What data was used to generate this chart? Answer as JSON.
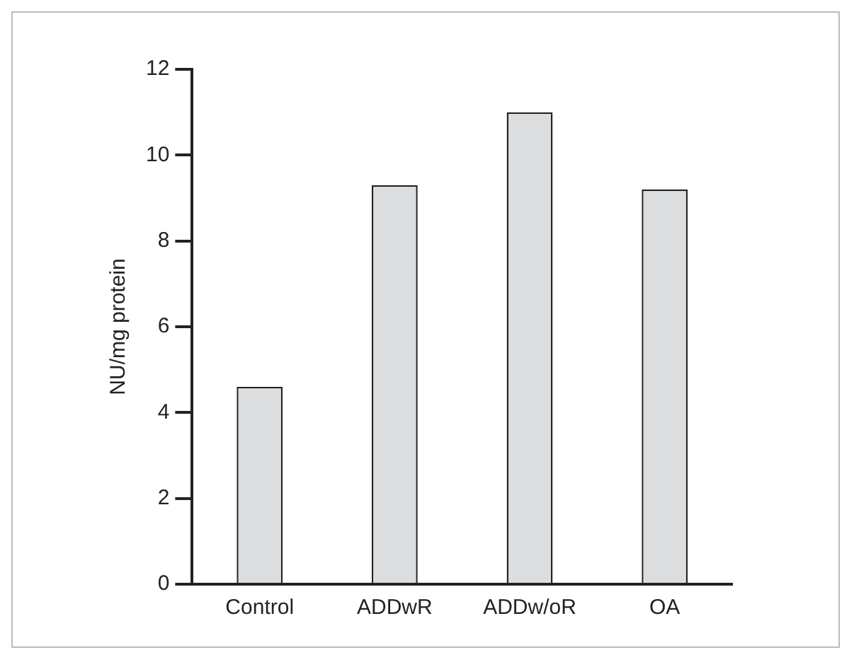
{
  "chart_data": {
    "type": "bar",
    "ylabel": "NU/mg protein",
    "categories": [
      "Control",
      "ADDwR",
      "ADDw/oR",
      "OA"
    ],
    "values": [
      4.6,
      9.3,
      11.0,
      9.2
    ],
    "color": "#dcdddf",
    "ylim": [
      0,
      12
    ],
    "yticks": [
      0,
      2,
      4,
      6,
      8,
      10,
      12
    ],
    "grid": false,
    "legend": false
  }
}
